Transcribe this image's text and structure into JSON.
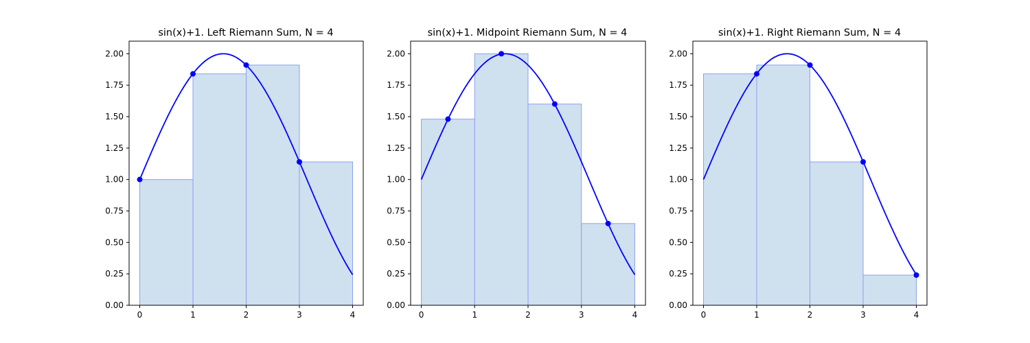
{
  "chart_data": [
    {
      "type": "bar",
      "title": "sin(x)+1. Left Riemann Sum, N = 4",
      "method": "left",
      "function": "sin(x)+1",
      "N": 4,
      "bars": [
        {
          "x0": 0,
          "x1": 1,
          "height": 1.0
        },
        {
          "x0": 1,
          "x1": 2,
          "height": 1.84
        },
        {
          "x0": 2,
          "x1": 3,
          "height": 1.91
        },
        {
          "x0": 3,
          "x1": 4,
          "height": 1.14
        }
      ],
      "sample_points": [
        {
          "x": 0,
          "y": 1.0
        },
        {
          "x": 1,
          "y": 1.84
        },
        {
          "x": 2,
          "y": 1.91
        },
        {
          "x": 3,
          "y": 1.14
        }
      ],
      "xlim": [
        -0.2,
        4.2
      ],
      "ylim": [
        0,
        2.1
      ],
      "xticks": [
        "0",
        "1",
        "2",
        "3",
        "4"
      ],
      "yticks": [
        "0.00",
        "0.25",
        "0.50",
        "0.75",
        "1.00",
        "1.25",
        "1.50",
        "1.75",
        "2.00"
      ],
      "colors": {
        "bar_fill": "#cfe0ef",
        "bar_edge": "#8da0f0",
        "curve": "#0000ff",
        "points": "#0000ff"
      }
    },
    {
      "type": "bar",
      "title": "sin(x)+1. Midpoint Riemann Sum, N = 4",
      "method": "midpoint",
      "function": "sin(x)+1",
      "N": 4,
      "bars": [
        {
          "x0": 0,
          "x1": 1,
          "height": 1.48
        },
        {
          "x0": 1,
          "x1": 2,
          "height": 2.0
        },
        {
          "x0": 2,
          "x1": 3,
          "height": 1.6
        },
        {
          "x0": 3,
          "x1": 4,
          "height": 0.65
        }
      ],
      "sample_points": [
        {
          "x": 0.5,
          "y": 1.48
        },
        {
          "x": 1.5,
          "y": 2.0
        },
        {
          "x": 2.5,
          "y": 1.6
        },
        {
          "x": 3.5,
          "y": 0.65
        }
      ],
      "xlim": [
        -0.2,
        4.2
      ],
      "ylim": [
        0,
        2.1
      ],
      "xticks": [
        "0",
        "1",
        "2",
        "3",
        "4"
      ],
      "yticks": [
        "0.00",
        "0.25",
        "0.50",
        "0.75",
        "1.00",
        "1.25",
        "1.50",
        "1.75",
        "2.00"
      ],
      "colors": {
        "bar_fill": "#cfe0ef",
        "bar_edge": "#8da0f0",
        "curve": "#0000ff",
        "points": "#0000ff"
      }
    },
    {
      "type": "bar",
      "title": "sin(x)+1. Right Riemann Sum, N = 4",
      "method": "right",
      "function": "sin(x)+1",
      "N": 4,
      "bars": [
        {
          "x0": 0,
          "x1": 1,
          "height": 1.84
        },
        {
          "x0": 1,
          "x1": 2,
          "height": 1.91
        },
        {
          "x0": 2,
          "x1": 3,
          "height": 1.14
        },
        {
          "x0": 3,
          "x1": 4,
          "height": 0.24
        }
      ],
      "sample_points": [
        {
          "x": 1,
          "y": 1.84
        },
        {
          "x": 2,
          "y": 1.91
        },
        {
          "x": 3,
          "y": 1.14
        },
        {
          "x": 4,
          "y": 0.24
        }
      ],
      "xlim": [
        -0.2,
        4.2
      ],
      "ylim": [
        0,
        2.1
      ],
      "xticks": [
        "0",
        "1",
        "2",
        "3",
        "4"
      ],
      "yticks": [
        "0.00",
        "0.25",
        "0.50",
        "0.75",
        "1.00",
        "1.25",
        "1.50",
        "1.75",
        "2.00"
      ],
      "colors": {
        "bar_fill": "#cfe0ef",
        "bar_edge": "#8da0f0",
        "curve": "#0000ff",
        "points": "#0000ff"
      }
    }
  ]
}
